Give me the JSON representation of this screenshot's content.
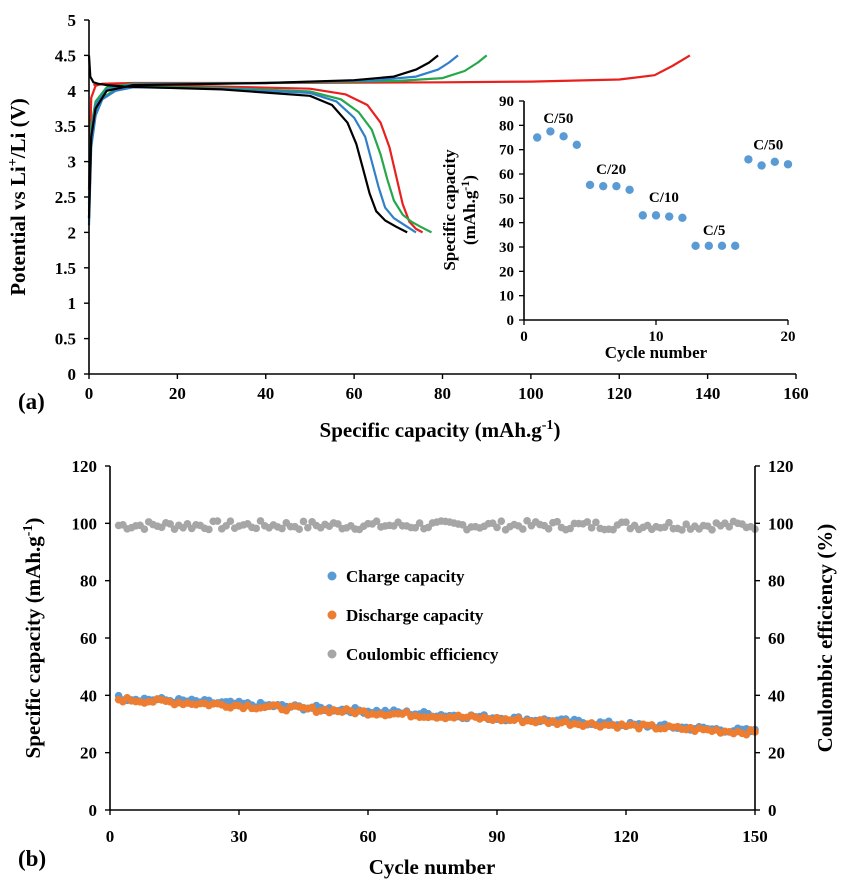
{
  "chart_data": [
    {
      "panel": "(a)",
      "type": "line",
      "xlabel": "Specific capacity (mAh.g",
      "xlabel_sup": "-1",
      "xlabel_tail": ")",
      "ylabel": "Potential vs Li",
      "ylabel_sup": "+",
      "ylabel_tail": "/Li (V)",
      "xlim": [
        0,
        160
      ],
      "ylim": [
        0,
        5
      ],
      "xticks": [
        "0",
        "20",
        "40",
        "60",
        "80",
        "100",
        "120",
        "140",
        "160"
      ],
      "yticks": [
        "0",
        "0.5",
        "1",
        "1.5",
        "2",
        "2.5",
        "3",
        "3.5",
        "4",
        "4.5",
        "5"
      ],
      "series": [
        {
          "color": "#e8211e",
          "charge": {
            "x": [
              0,
              0.5,
              1.5,
              3,
              10,
              40,
              80,
              100,
              120,
              128,
              132,
              136
            ],
            "y": [
              2.6,
              3.9,
              4.07,
              4.1,
              4.11,
              4.11,
              4.12,
              4.13,
              4.16,
              4.22,
              4.35,
              4.5
            ]
          },
          "discharge": {
            "x": [
              1,
              2,
              5,
              10,
              30,
              50,
              58,
              63,
              66,
              68,
              69.5,
              71,
              72.5,
              74,
              75.5
            ],
            "y": [
              4.08,
              4.09,
              4.09,
              4.08,
              4.06,
              4.03,
              3.95,
              3.8,
              3.55,
              3.2,
              2.8,
              2.4,
              2.15,
              2.05,
              2.0
            ]
          }
        },
        {
          "color": "#26a84a",
          "charge": {
            "x": [
              0,
              0.5,
              1.5,
              4,
              10,
              40,
              70,
              80,
              85,
              88,
              90
            ],
            "y": [
              2.4,
              3.5,
              3.85,
              4.05,
              4.1,
              4.11,
              4.14,
              4.18,
              4.28,
              4.4,
              4.5
            ]
          },
          "discharge": {
            "x": [
              0,
              0.5,
              1.5,
              3,
              6,
              10,
              30,
              50,
              57,
              61,
              64,
              66,
              67.5,
              69,
              71,
              73,
              75,
              77.5
            ],
            "y": [
              2.2,
              3.3,
              3.7,
              3.9,
              4.02,
              4.06,
              4.04,
              3.99,
              3.88,
              3.7,
              3.45,
              3.1,
              2.75,
              2.45,
              2.25,
              2.15,
              2.08,
              2.0
            ]
          }
        },
        {
          "color": "#2f80c8",
          "charge": {
            "x": [
              0,
              0.5,
              1.5,
              4,
              10,
              40,
              65,
              74,
              79,
              81.5,
              83.5
            ],
            "y": [
              2.3,
              3.4,
              3.8,
              4.02,
              4.09,
              4.11,
              4.15,
              4.2,
              4.3,
              4.4,
              4.5
            ]
          },
          "discharge": {
            "x": [
              0,
              0.5,
              1.5,
              3,
              6,
              10,
              30,
              50,
              56,
              60,
              62.5,
              64,
              65.5,
              67,
              69,
              71.5,
              74
            ],
            "y": [
              2.1,
              3.2,
              3.65,
              3.88,
              4.0,
              4.05,
              4.03,
              3.97,
              3.85,
              3.62,
              3.35,
              3.0,
              2.65,
              2.35,
              2.2,
              2.1,
              2.0
            ]
          }
        },
        {
          "color": "#000000",
          "charge": {
            "x": [
              0,
              0.5,
              1.5,
              4,
              10,
              40,
              60,
              69,
              74,
              77,
              79
            ],
            "y": [
              2.2,
              3.35,
              3.75,
              4.0,
              4.08,
              4.11,
              4.15,
              4.2,
              4.3,
              4.4,
              4.5
            ]
          },
          "discharge": {
            "x": [
              0,
              0.3,
              1,
              2,
              4,
              8,
              30,
              50,
              55,
              58.5,
              60.5,
              62,
              63.5,
              65,
              67,
              69.5,
              72
            ],
            "y": [
              4.5,
              4.2,
              4.12,
              4.1,
              4.08,
              4.06,
              4.02,
              3.93,
              3.8,
              3.55,
              3.25,
              2.9,
              2.55,
              2.3,
              2.17,
              2.08,
              2.0
            ]
          }
        }
      ]
    },
    {
      "panel": "(a) inset",
      "type": "scatter",
      "xlabel": "Cycle number",
      "ylabel": "Specific capacity",
      "ylabel2": "(mAh.g",
      "ylabel2_sup": "-1",
      "ylabel2_tail": ")",
      "xlim": [
        0,
        20
      ],
      "ylim": [
        0,
        90
      ],
      "xticks": [
        "0",
        "10",
        "20"
      ],
      "yticks": [
        "0",
        "10",
        "20",
        "30",
        "40",
        "50",
        "60",
        "70",
        "80",
        "90"
      ],
      "color": "#5b9bd5",
      "x": [
        1,
        2,
        3,
        4,
        5,
        6,
        7,
        8,
        9,
        10,
        11,
        12,
        13,
        14,
        15,
        16,
        17,
        18,
        19,
        20
      ],
      "y": [
        75,
        77.5,
        75.5,
        72,
        55.5,
        55,
        55,
        53.5,
        43,
        43,
        42.5,
        42,
        30.5,
        30.5,
        30.5,
        30.5,
        66,
        63.5,
        65,
        64
      ],
      "annotations": [
        {
          "text": "C/50",
          "x": 2.6,
          "y": 81
        },
        {
          "text": "C/20",
          "x": 6.6,
          "y": 60
        },
        {
          "text": "C/10",
          "x": 10.6,
          "y": 48.5
        },
        {
          "text": "C/5",
          "x": 14.4,
          "y": 35
        },
        {
          "text": "C/50",
          "x": 18.5,
          "y": 70
        }
      ]
    },
    {
      "panel": "(b)",
      "type": "scatter",
      "xlabel": "Cycle number",
      "ylabel": "Specific capacity (mAh.g",
      "ylabel_sup": "-1",
      "ylabel_tail": ")",
      "ylabel_right": "Coulombic efficiency (%)",
      "xlim": [
        0,
        150
      ],
      "ylim": [
        0,
        120
      ],
      "ylim_right": [
        0,
        120
      ],
      "xticks": [
        "0",
        "30",
        "60",
        "90",
        "120",
        "150"
      ],
      "yticks": [
        "0",
        "20",
        "40",
        "60",
        "80",
        "100",
        "120"
      ],
      "yticks_right": [
        "0",
        "20",
        "40",
        "60",
        "80",
        "100",
        "120"
      ],
      "legend_position": "center",
      "series": [
        {
          "name": "Charge capacity",
          "color": "#5b9bd5",
          "start": 39.2,
          "end": 27.4,
          "jitter": 0.9
        },
        {
          "name": "Discharge capacity",
          "color": "#ed7d31",
          "start": 38.6,
          "end": 27.0,
          "jitter": 0.9
        },
        {
          "name": "Coulombic efficiency",
          "color": "#a6a6a6",
          "center": 99.3,
          "jitter": 1.6
        }
      ],
      "x_range": [
        2,
        150
      ]
    }
  ]
}
